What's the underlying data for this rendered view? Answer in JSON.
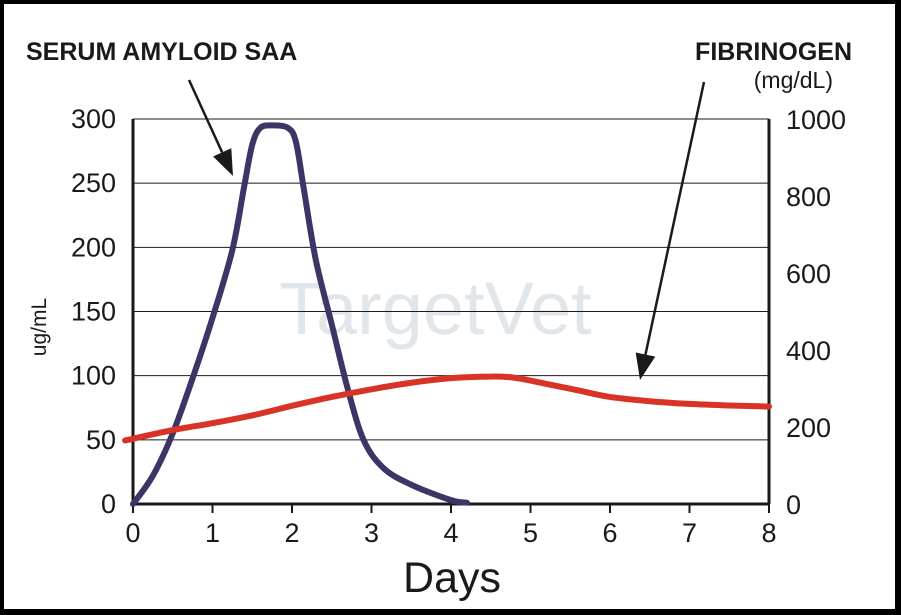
{
  "chart_data": {
    "type": "line",
    "left_title": "SERUM AMYLOID SAA",
    "right_title": "FIBRINOGEN",
    "right_unit": "(mg/dL)",
    "xlabel": "Days",
    "ylabel": "ug/mL",
    "watermark": "TargetVet",
    "x_ticks": [
      "0",
      "1",
      "2",
      "3",
      "4",
      "5",
      "6",
      "7",
      "8"
    ],
    "xlim": [
      0,
      8
    ],
    "y_left_ticks": [
      "0",
      "50",
      "100",
      "150",
      "200",
      "250",
      "300"
    ],
    "ylim_left": [
      0,
      300
    ],
    "y_right_ticks": [
      "0",
      "200",
      "400",
      "600",
      "800",
      "1000"
    ],
    "ylim_right": [
      0,
      1000
    ],
    "grid": "horizontal",
    "series": [
      {
        "name": "SERUM AMYLOID SAA",
        "axis": "left",
        "color": "#3c3566",
        "points": [
          [
            0,
            0
          ],
          [
            0.25,
            22
          ],
          [
            0.5,
            55
          ],
          [
            0.75,
            98
          ],
          [
            1.0,
            145
          ],
          [
            1.25,
            198
          ],
          [
            1.4,
            248
          ],
          [
            1.5,
            280
          ],
          [
            1.6,
            293
          ],
          [
            1.75,
            295
          ],
          [
            1.95,
            293
          ],
          [
            2.05,
            282
          ],
          [
            2.15,
            245
          ],
          [
            2.3,
            190
          ],
          [
            2.5,
            140
          ],
          [
            2.7,
            90
          ],
          [
            2.9,
            50
          ],
          [
            3.15,
            28
          ],
          [
            3.5,
            15
          ],
          [
            4.0,
            3
          ],
          [
            4.2,
            1
          ]
        ]
      },
      {
        "name": "FIBRINOGEN",
        "axis": "right",
        "color": "#d93226",
        "points": [
          [
            -0.1,
            165
          ],
          [
            0.5,
            192
          ],
          [
            1.0,
            210
          ],
          [
            1.5,
            230
          ],
          [
            2.0,
            255
          ],
          [
            2.5,
            278
          ],
          [
            3.0,
            298
          ],
          [
            3.5,
            315
          ],
          [
            4.0,
            327
          ],
          [
            4.5,
            331
          ],
          [
            4.8,
            328
          ],
          [
            5.2,
            312
          ],
          [
            5.6,
            295
          ],
          [
            6.0,
            278
          ],
          [
            6.5,
            267
          ],
          [
            7.0,
            260
          ],
          [
            7.5,
            256
          ],
          [
            8.0,
            253
          ]
        ]
      }
    ]
  }
}
